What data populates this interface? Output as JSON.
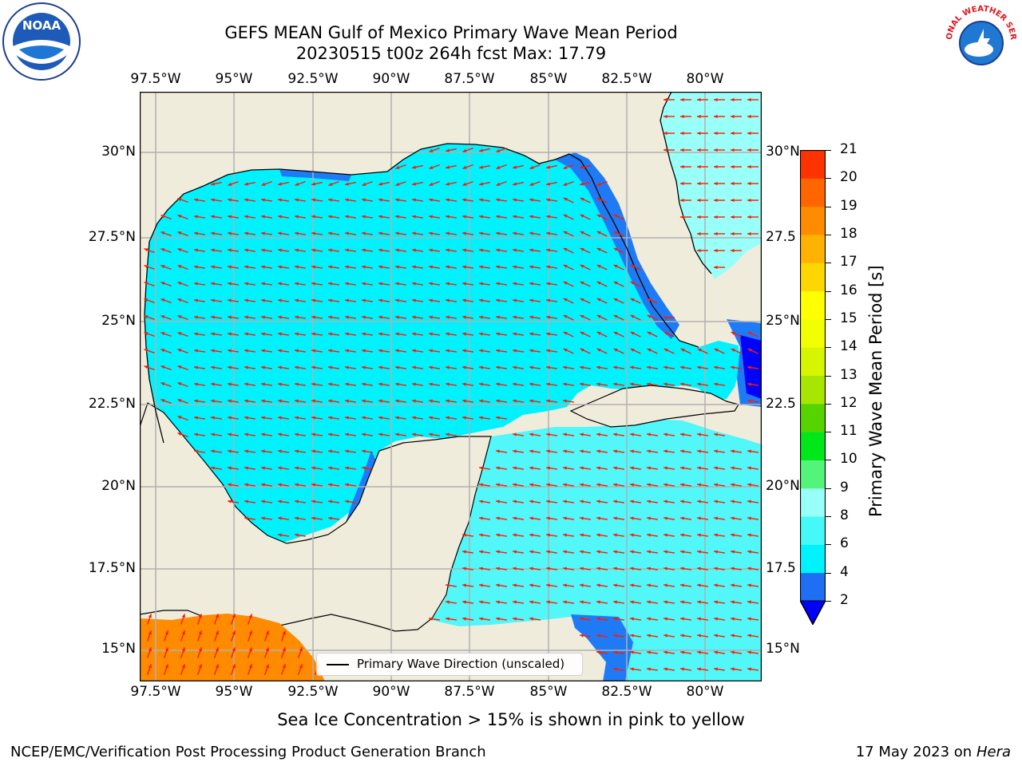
{
  "header": {
    "title_line1": "GEFS MEAN Gulf of Mexico Primary Wave Mean Period",
    "title_line2": "20230515 t00z 264h fcst   Max: 17.79"
  },
  "logos": {
    "noaa_text": "NOAA",
    "nws_text": "NATIONAL WEATHER SERVICE"
  },
  "axes": {
    "lon_ticks": [
      "97.5°W",
      "95°W",
      "92.5°W",
      "90°W",
      "87.5°W",
      "85°W",
      "82.5°W",
      "80°W"
    ],
    "lat_ticks": [
      "30°N",
      "27.5°N",
      "25°N",
      "22.5°N",
      "20°N",
      "17.5°N",
      "15°N"
    ],
    "lat_ticks_right": [
      "30°N",
      "27.5",
      "25°N",
      "22.5",
      "20°N",
      "17.5",
      "15°N"
    ],
    "gridlines": true
  },
  "legend": {
    "label": "Primary Wave Direction (unscaled)"
  },
  "colorbar": {
    "title": "Primary Wave Mean Period [s]",
    "levels": [
      "2",
      "4",
      "6",
      "8",
      "9",
      "10",
      "11",
      "12",
      "13",
      "14",
      "15",
      "16",
      "17",
      "18",
      "19",
      "20",
      "21"
    ],
    "colors": [
      "#1f6ff5",
      "#00f2ff",
      "#44f9f7",
      "#99fff9",
      "#52f57a",
      "#00e81a",
      "#55d400",
      "#a7e600",
      "#d6f500",
      "#f2ff00",
      "#ffff00",
      "#ffd700",
      "#ffb300",
      "#ff8c00",
      "#ff6600",
      "#ff3300",
      "#ff0000"
    ],
    "under_color": "#0000ff"
  },
  "colors": {
    "land": "#efecdc",
    "ocean_main": "#00f2ff",
    "ocean_carib": "#52f7f9",
    "ocean_dark": "#1f7bf5",
    "ocean_deep": "#0000ff",
    "high_period": "#ff8c00",
    "arrow": "#ff1a00"
  },
  "footer": {
    "sea_ice_note": "Sea Ice Concentration > 15% is shown in pink to yellow",
    "credit": "NCEP/EMC/Verification Post Processing Product Generation Branch",
    "date": "17 May 2023 on",
    "machine": "Hera"
  }
}
